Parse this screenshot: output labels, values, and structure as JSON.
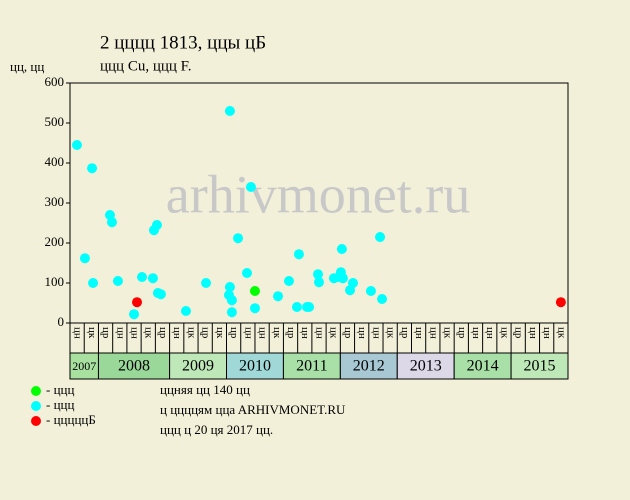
{
  "chart_data": {
    "type": "scatter",
    "title": "2 цццц 1813, ццы цБ",
    "subtitle": "ццц Cu, ццц F.",
    "y_label": "цц, цц",
    "watermark": "arhivmonet.ru",
    "columns": [
      "цн",
      "цк",
      "цр",
      "цн",
      "цн",
      "цк",
      "цр",
      "цн",
      "цк",
      "цр",
      "цк",
      "цр",
      "цн",
      "цн",
      "цк",
      "цр",
      "цн",
      "цн",
      "цк",
      "цр",
      "цн",
      "цн",
      "цк",
      "цр",
      "цн",
      "цн",
      "цк",
      "цр",
      "цн",
      "цн",
      "цк",
      "цр",
      "цн",
      "цн",
      "цк"
    ],
    "years": [
      "2007",
      "2008",
      "2009",
      "2010",
      "2011",
      "2012",
      "2013",
      "2014",
      "2015"
    ],
    "xlim": [
      0,
      35
    ],
    "ylim": [
      0,
      600
    ],
    "yticks": [
      0,
      100,
      200,
      300,
      400,
      500,
      600
    ],
    "series": [
      {
        "name": "- ццц",
        "color": "#00ff00",
        "x": [
          13.0
        ],
        "values": [
          80
        ]
      },
      {
        "name": "- ццц",
        "color": "#00ffff",
        "x": [
          0.49,
          1.05,
          1.55,
          1.62,
          2.81,
          2.95,
          3.37,
          4.5,
          5.06,
          5.83,
          5.9,
          6.11,
          6.18,
          6.39,
          8.15,
          9.56,
          11.17,
          11.24,
          11.24,
          11.38,
          11.38,
          11.81,
          12.44,
          12.72,
          13.0,
          14.62,
          15.39,
          15.95,
          16.09,
          16.66,
          16.8,
          17.43,
          17.5,
          18.55,
          18.9,
          19.04,
          19.11,
          19.18,
          19.68,
          19.89,
          21.15,
          21.79,
          21.93
        ],
        "values": [
          445,
          162,
          387,
          100,
          270,
          252,
          105,
          22,
          115,
          112,
          232,
          245,
          75,
          72,
          30,
          100,
          70,
          530,
          90,
          57,
          27,
          212,
          125,
          340,
          37,
          67,
          105,
          40,
          172,
          40,
          40,
          122,
          102,
          112,
          115,
          127,
          185,
          112,
          82,
          100,
          80,
          215,
          60
        ]
      },
      {
        "name": "- цццццБ",
        "color": "#ff0000",
        "x": [
          4.71,
          34.5
        ],
        "values": [
          52,
          52
        ]
      }
    ],
    "notes": [
      "ццняя цц 140 цц",
      "ц ццццям ццa ARHIVMONET.RU",
      "ццц ц 20 ця 2017 цц."
    ]
  }
}
